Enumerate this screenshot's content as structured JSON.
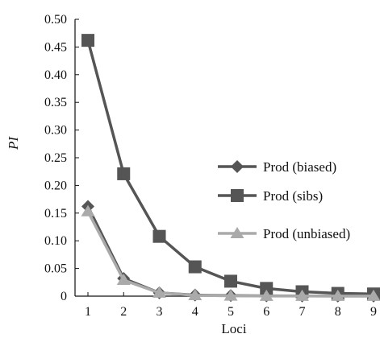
{
  "chart_data": {
    "type": "line",
    "x": [
      1,
      2,
      3,
      4,
      5,
      6,
      7,
      8,
      9
    ],
    "xlabel": "Loci",
    "ylabel": "PI",
    "ylim": [
      0,
      0.5
    ],
    "yticks": [
      "0",
      "0.05",
      "0.10",
      "0.15",
      "0.20",
      "0.25",
      "0.30",
      "0.35",
      "0.40",
      "0.45",
      "0.50"
    ],
    "xticks": [
      "1",
      "2",
      "3",
      "4",
      "5",
      "6",
      "7",
      "8",
      "9"
    ],
    "grid": false,
    "legend_position": "right",
    "series": [
      {
        "name": "Prod (biased)",
        "marker": "diamond",
        "color": "#555555",
        "values": [
          0.162,
          0.032,
          0.006,
          0.002,
          0.001,
          0.0005,
          0.0003,
          0.0002,
          0.0001
        ]
      },
      {
        "name": "Prod (sibs)",
        "marker": "square",
        "color": "#555555",
        "values": [
          0.462,
          0.221,
          0.108,
          0.053,
          0.027,
          0.014,
          0.008,
          0.005,
          0.004
        ]
      },
      {
        "name": "Prod (unbiased)",
        "marker": "triangle",
        "color": "#aaaaaa",
        "values": [
          0.153,
          0.029,
          0.006,
          0.0015,
          0.0005,
          0.0002,
          0.0001,
          0.0001,
          0.0001
        ]
      }
    ]
  }
}
